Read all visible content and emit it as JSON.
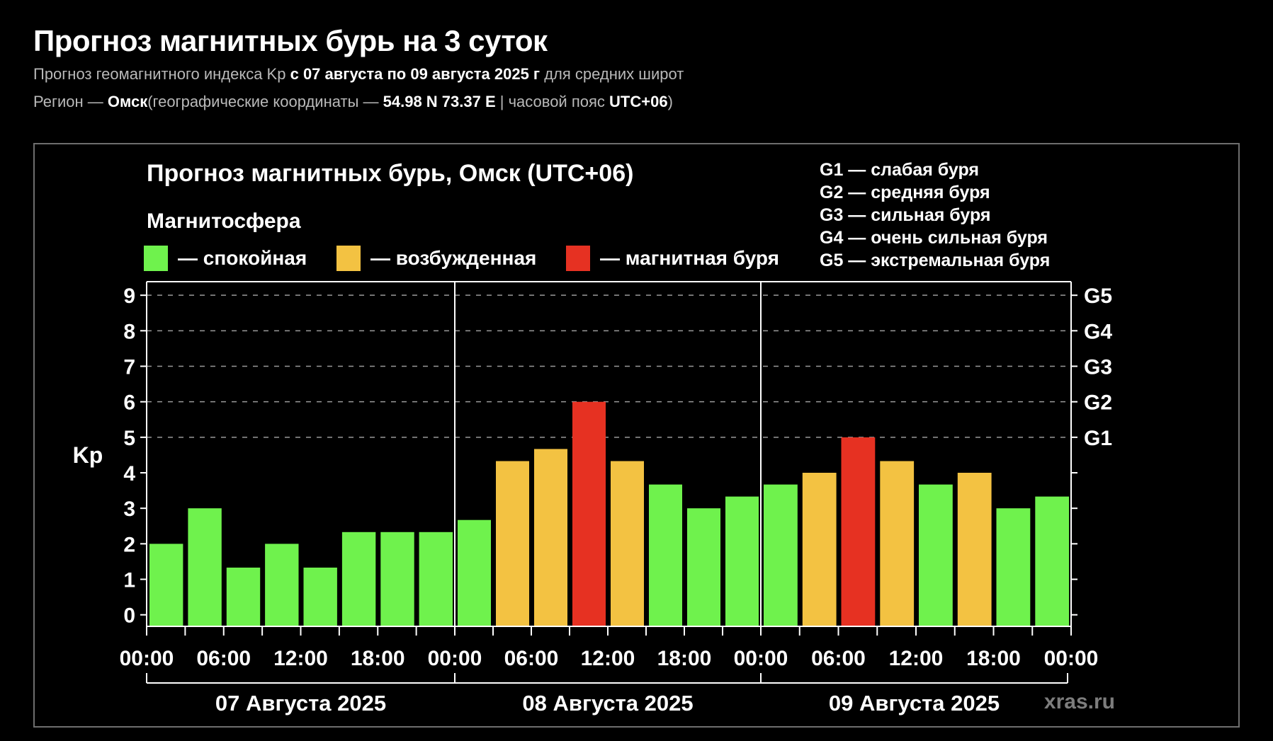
{
  "header": {
    "title": "Прогноз магнитных бурь на 3 суток",
    "subtitle": {
      "prefix": "Прогноз геомагнитного индекса Kp ",
      "highlight": "с 07 августа по 09 августа 2025 г",
      "suffix": " для средних широт"
    },
    "region": {
      "label": "Регион — ",
      "city": "Омск",
      "coords_label": "(географические координаты — ",
      "coords": "54.98 N 73.37 E",
      "tz_label": " | часовой пояс ",
      "tz": "UTC+06",
      "close_paren": ")"
    }
  },
  "panel": {
    "chart_title": "Прогноз магнитных бурь, Омск (UTC+06)",
    "magnetosphere_label": "Магнитосфера",
    "legend": [
      {
        "status": "quiet",
        "label": "— спокойная",
        "color": "#6ff24d"
      },
      {
        "status": "excited",
        "label": "— возбужденная",
        "color": "#f3c242"
      },
      {
        "status": "storm",
        "label": "— магнитная буря",
        "color": "#e63122"
      }
    ],
    "g_legend": [
      "G1 — слабая буря",
      "G2 — средняя буря",
      "G3 — сильная буря",
      "G4 — очень сильная буря",
      "G5 — экстремальная буря"
    ],
    "watermark": "xras.ru"
  },
  "chart_data": {
    "type": "bar",
    "title": "Прогноз магнитных бурь, Омск (UTC+06)",
    "ylabel": "Kp",
    "ylim": [
      0,
      9
    ],
    "y_ticks": [
      0,
      1,
      2,
      3,
      4,
      5,
      6,
      7,
      8,
      9
    ],
    "grid_kp_levels": [
      5,
      6,
      7,
      8,
      9
    ],
    "right_axis_labels": [
      {
        "kp": 5,
        "label": "G1"
      },
      {
        "kp": 6,
        "label": "G2"
      },
      {
        "kp": 7,
        "label": "G3"
      },
      {
        "kp": 8,
        "label": "G4"
      },
      {
        "kp": 9,
        "label": "G5"
      }
    ],
    "interval_hours": 3,
    "x_time_labels": [
      "00:00",
      "06:00",
      "12:00",
      "18:00"
    ],
    "final_time_label": "00:00",
    "legend_position": "top-left",
    "grid": "dashed horizontal at Kp 5..9",
    "color_rule": {
      "quiet_if_below": 4,
      "excited_if_4_to_5": true,
      "storm_if_at_or_above": 5
    },
    "colors": {
      "quiet": "#6ff24d",
      "excited": "#f3c242",
      "storm": "#e63122"
    },
    "days": [
      {
        "date": "07 Августа 2025",
        "values": [
          2,
          3,
          1.33,
          2,
          1.33,
          2.33,
          2.33,
          2.33
        ]
      },
      {
        "date": "08 Августа 2025",
        "values": [
          2.67,
          4.33,
          4.67,
          6,
          4.33,
          3.67,
          3,
          3.33
        ]
      },
      {
        "date": "09 Августа 2025",
        "values": [
          3.67,
          4,
          5,
          4.33,
          3.67,
          4,
          3,
          3.33
        ]
      }
    ]
  }
}
